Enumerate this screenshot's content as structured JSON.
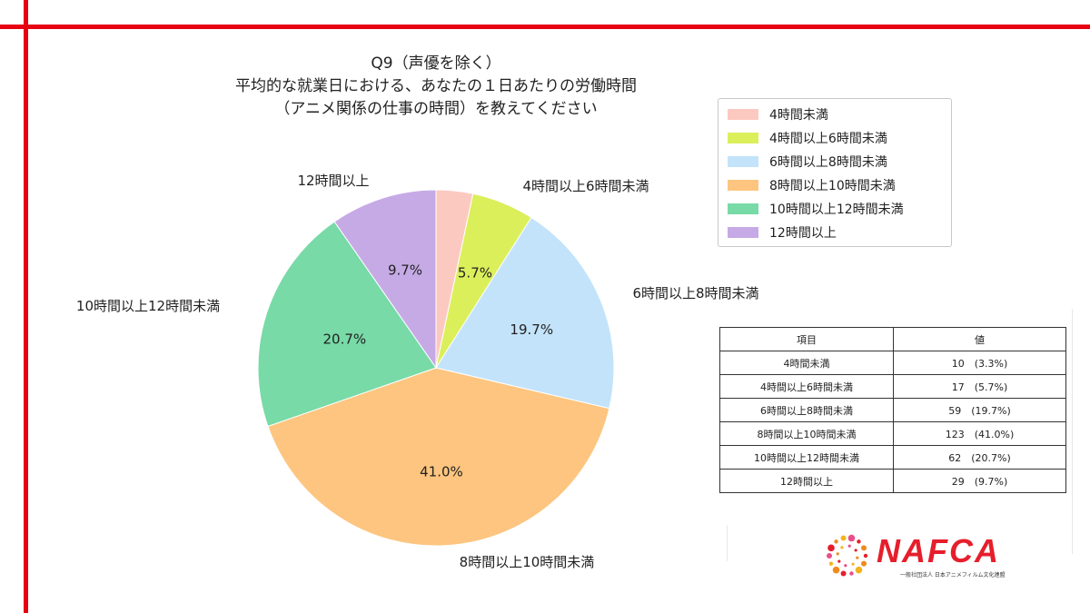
{
  "title": {
    "line1": "Q9（声優を除く）",
    "line2": "平均的な就業日における、あなたの１日あたりの労働時間",
    "line3": "（アニメ関係の仕事の時間）を教えてください"
  },
  "chart_data": {
    "type": "pie",
    "categories": [
      "4時間未満",
      "4時間以上6時間未満",
      "6時間以上8時間未満",
      "8時間以上10時間未満",
      "10時間以上12時間未満",
      "12時間以上"
    ],
    "values": [
      10,
      17,
      59,
      123,
      62,
      29
    ],
    "percent_labels": [
      "",
      "5.7%",
      "19.7%",
      "41.0%",
      "20.7%",
      "9.7%"
    ],
    "colors": [
      "#fcc9c1",
      "#dbef5b",
      "#c3e3fa",
      "#fdc57f",
      "#78daa7",
      "#c6aae6"
    ],
    "start": "12 o'clock, clockwise",
    "legend_position": "top-right"
  },
  "table": {
    "headers": [
      "項目",
      "値"
    ],
    "rows": [
      {
        "item": "4時間未満",
        "value": "10　(3.3%)"
      },
      {
        "item": "4時間以上6時間未満",
        "value": "17　(5.7%)"
      },
      {
        "item": "6時間以上8時間未満",
        "value": "59　(19.7%)"
      },
      {
        "item": "8時間以上10時間未満",
        "value": "123　(41.0%)"
      },
      {
        "item": "10時間以上12時間未満",
        "value": "62　(20.7%)"
      },
      {
        "item": "12時間以上",
        "value": "29　(9.7%)"
      }
    ]
  },
  "logo": {
    "text": "NAFCA",
    "subtitle": "一般社団法人 日本アニメフィルム文化連盟"
  },
  "colors": {
    "frame": "#e60012",
    "logo": "#e61e2c"
  }
}
